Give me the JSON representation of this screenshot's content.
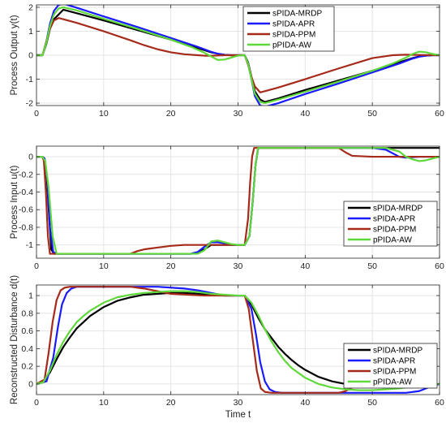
{
  "colors": {
    "sPIDA-MRDP": "#000000",
    "sPIDA-APR": "#1a1aff",
    "sPIDA-PPM": "#a52a1a",
    "pPIDA-AW": "#5fd83a"
  },
  "chart_data": [
    {
      "type": "line",
      "ylabel": "Process Output y(t)",
      "xlabel": "",
      "xlim": [
        0,
        60
      ],
      "ylim": [
        -2.1,
        2.1
      ],
      "xticks": [
        0,
        10,
        20,
        30,
        40,
        50,
        60
      ],
      "xtick_labels": [
        "0",
        "10",
        "20",
        "30",
        "40",
        "50",
        "60"
      ],
      "yticks": [
        -2,
        -1,
        0,
        1,
        2
      ],
      "ytick_labels": [
        "-2",
        "-1",
        "0",
        "1",
        "2"
      ],
      "grid": true,
      "legend_position": "top-right",
      "series": [
        {
          "name": "sPIDA-MRDP",
          "x": [
            0,
            0.9,
            1.5,
            2.0,
            2.6,
            3.3,
            4,
            6,
            10,
            15,
            20,
            24,
            26,
            27,
            28,
            29,
            30,
            31,
            31.5,
            32,
            32.5,
            33.3,
            34,
            36,
            40,
            45,
            50,
            54,
            56,
            57,
            58,
            59,
            60
          ],
          "y": [
            0,
            0,
            0.5,
            1.1,
            1.5,
            1.7,
            1.9,
            1.75,
            1.45,
            1.05,
            0.65,
            0.3,
            0.12,
            0.06,
            0.02,
            0.0,
            0.0,
            0.0,
            -0.3,
            -0.9,
            -1.5,
            -1.85,
            -1.95,
            -1.8,
            -1.45,
            -1.05,
            -0.65,
            -0.3,
            -0.12,
            -0.05,
            -0.02,
            0.0,
            0.0
          ]
        },
        {
          "name": "sPIDA-APR",
          "x": [
            0,
            0.9,
            1.5,
            2.0,
            2.6,
            3.3,
            4,
            6,
            10,
            15,
            20,
            24,
            26,
            27,
            28,
            29,
            30,
            31,
            31.5,
            32,
            32.5,
            33.3,
            34,
            36,
            40,
            45,
            50,
            54,
            56,
            57,
            58,
            59,
            60
          ],
          "y": [
            0,
            0,
            0.6,
            1.3,
            1.85,
            2.1,
            2.15,
            1.98,
            1.62,
            1.18,
            0.72,
            0.35,
            0.14,
            0.06,
            0.02,
            0.0,
            0.0,
            0.0,
            -0.35,
            -1.0,
            -1.7,
            -2.1,
            -2.15,
            -2.0,
            -1.62,
            -1.18,
            -0.72,
            -0.35,
            -0.14,
            -0.06,
            -0.02,
            0.0,
            0.0
          ]
        },
        {
          "name": "sPIDA-PPM",
          "x": [
            0,
            0.9,
            1.5,
            2.0,
            2.6,
            3.3,
            4,
            6,
            10,
            14,
            16,
            18,
            20,
            22,
            24,
            25,
            26,
            28,
            30,
            31,
            31.5,
            32,
            32.5,
            33.3,
            34,
            36,
            40,
            45,
            50,
            52,
            53,
            55,
            57,
            60
          ],
          "y": [
            0,
            0,
            0.6,
            1.1,
            1.45,
            1.55,
            1.5,
            1.35,
            1.0,
            0.62,
            0.42,
            0.25,
            0.12,
            0.04,
            0.0,
            -0.02,
            -0.02,
            0.0,
            0.0,
            0.0,
            -0.4,
            -0.9,
            -1.3,
            -1.55,
            -1.5,
            -1.35,
            -1.0,
            -0.55,
            -0.12,
            -0.04,
            0.0,
            0.02,
            0.01,
            0.0
          ]
        },
        {
          "name": "pPIDA-AW",
          "x": [
            0,
            0.9,
            1.5,
            2.0,
            2.6,
            3.3,
            4,
            6,
            10,
            15,
            20,
            23,
            25,
            26,
            27,
            28,
            29,
            30,
            31,
            31.5,
            32,
            32.5,
            33.3,
            34,
            36,
            40,
            45,
            50,
            53,
            55,
            56,
            57,
            58,
            59,
            60
          ],
          "y": [
            0,
            0,
            0.55,
            1.2,
            1.7,
            1.95,
            2.0,
            1.87,
            1.52,
            1.1,
            0.65,
            0.35,
            0.1,
            -0.05,
            -0.2,
            -0.18,
            -0.1,
            -0.02,
            0.0,
            -0.35,
            -1.0,
            -1.6,
            -1.95,
            -2.0,
            -1.85,
            -1.52,
            -1.1,
            -0.65,
            -0.35,
            -0.1,
            0.05,
            0.15,
            0.12,
            0.05,
            0.0
          ]
        }
      ]
    },
    {
      "type": "line",
      "ylabel": "Process Input u(t)",
      "xlabel": "",
      "xlim": [
        0,
        60
      ],
      "ylim": [
        -1.15,
        0.12
      ],
      "xticks": [
        0,
        10,
        20,
        30,
        40,
        50,
        60
      ],
      "xtick_labels": [
        "0",
        "10",
        "20",
        "30",
        "40",
        "50",
        "60"
      ],
      "yticks": [
        -1,
        -0.8,
        -0.6,
        -0.4,
        -0.2,
        0
      ],
      "ytick_labels": [
        "-1",
        "-0.8",
        "-0.6",
        "-0.4",
        "-0.2",
        "0"
      ],
      "grid": true,
      "legend_position": "bottom-right",
      "series": [
        {
          "name": "sPIDA-MRDP",
          "x": [
            0,
            0.9,
            1.2,
            1.5,
            1.9,
            2.2,
            2.6,
            23,
            24,
            25,
            26,
            27,
            28,
            29,
            30,
            31,
            31.7,
            32.2,
            32.6,
            33,
            60
          ],
          "y": [
            0,
            0,
            -0.02,
            -0.2,
            -0.7,
            -1.05,
            -1.1,
            -1.1,
            -1.08,
            -1.05,
            -1.0,
            -1.0,
            -1.0,
            -1.0,
            -1.0,
            -1.0,
            -0.9,
            -0.5,
            -0.1,
            0.1,
            0.1
          ]
        },
        {
          "name": "sPIDA-APR",
          "x": [
            0,
            0.9,
            1.2,
            1.6,
            2.0,
            2.5,
            3.0,
            23,
            24,
            25,
            26,
            27,
            28,
            29,
            30,
            31,
            31.7,
            32.2,
            32.6,
            33,
            50,
            52,
            53,
            54,
            55,
            57,
            60
          ],
          "y": [
            0,
            0,
            -0.02,
            -0.25,
            -0.8,
            -1.08,
            -1.1,
            -1.1,
            -1.08,
            -1.02,
            -0.97,
            -0.97,
            -0.98,
            -1.0,
            -1.0,
            -1.0,
            -0.9,
            -0.5,
            -0.1,
            0.1,
            0.1,
            0.08,
            0.04,
            0.0,
            -0.01,
            0.0,
            0.0
          ]
        },
        {
          "name": "sPIDA-PPM",
          "x": [
            0,
            0.9,
            1.1,
            1.4,
            1.7,
            2.0,
            2.3,
            14,
            15,
            16,
            18,
            20,
            22,
            24,
            26,
            28,
            30,
            31,
            31.5,
            31.8,
            32.1,
            32.4,
            45,
            46,
            47,
            50,
            55,
            60
          ],
          "y": [
            0,
            0,
            -0.05,
            -0.4,
            -0.9,
            -1.1,
            -1.1,
            -1.1,
            -1.07,
            -1.05,
            -1.03,
            -1.01,
            -1.0,
            -1.0,
            -1.0,
            -1.0,
            -1.0,
            -1.0,
            -0.7,
            -0.3,
            0.0,
            0.1,
            0.1,
            0.05,
            0.01,
            0.0,
            0.0,
            0.0
          ]
        },
        {
          "name": "pPIDA-AW",
          "x": [
            0,
            0.9,
            1.3,
            1.8,
            2.4,
            3.0,
            3.5,
            23,
            24,
            25,
            26,
            27,
            28,
            29,
            30,
            31,
            31.7,
            32.2,
            32.6,
            33,
            52,
            54,
            55,
            56,
            57,
            58,
            59,
            60
          ],
          "y": [
            0,
            0,
            -0.05,
            -0.35,
            -0.9,
            -1.1,
            -1.1,
            -1.1,
            -1.1,
            -1.06,
            -0.96,
            -0.95,
            -0.97,
            -0.99,
            -1.0,
            -1.0,
            -0.9,
            -0.5,
            -0.1,
            0.1,
            0.1,
            0.06,
            0.0,
            -0.03,
            -0.05,
            -0.04,
            -0.02,
            0.0
          ]
        }
      ]
    },
    {
      "type": "line",
      "ylabel": "Reconstructed Disturbance d(t)",
      "xlabel": "Time t",
      "xlim": [
        0,
        60
      ],
      "ylim": [
        -0.12,
        1.12
      ],
      "xticks": [
        0,
        10,
        20,
        30,
        40,
        50,
        60
      ],
      "xtick_labels": [
        "0",
        "10",
        "20",
        "30",
        "40",
        "50",
        "60"
      ],
      "yticks": [
        0,
        0.2,
        0.4,
        0.6,
        0.8,
        1
      ],
      "ytick_labels": [
        "0",
        "0.2",
        "0.4",
        "0.6",
        "0.8",
        "1"
      ],
      "grid": true,
      "legend_position": "bottom-right",
      "series": [
        {
          "name": "sPIDA-MRDP",
          "x": [
            0,
            1,
            2,
            3,
            4,
            5,
            6,
            7,
            8,
            10,
            12,
            14,
            16,
            18,
            20,
            22,
            24,
            26,
            28,
            30,
            31,
            32,
            33,
            34,
            35,
            36,
            37,
            38,
            39,
            40,
            42,
            44,
            46,
            48,
            50,
            54,
            58,
            60
          ],
          "y": [
            0,
            0.02,
            0.13,
            0.28,
            0.42,
            0.53,
            0.63,
            0.7,
            0.77,
            0.87,
            0.94,
            0.98,
            1.01,
            1.02,
            1.03,
            1.03,
            1.02,
            1.01,
            1.0,
            1.0,
            1.0,
            0.9,
            0.75,
            0.62,
            0.52,
            0.42,
            0.34,
            0.27,
            0.21,
            0.16,
            0.08,
            0.03,
            0.0,
            -0.02,
            -0.03,
            -0.04,
            -0.02,
            0.0
          ]
        },
        {
          "name": "sPIDA-APR",
          "x": [
            0,
            1.5,
            2.5,
            3.2,
            3.8,
            4.5,
            5.2,
            6,
            10,
            15,
            18,
            20,
            22,
            24,
            26,
            28,
            30,
            31,
            32,
            32.7,
            33.3,
            34,
            34.7,
            35.5,
            36.5,
            40,
            45,
            50,
            55,
            57,
            59,
            60
          ],
          "y": [
            0,
            0.03,
            0.3,
            0.65,
            0.9,
            1.03,
            1.08,
            1.1,
            1.1,
            1.1,
            1.1,
            1.09,
            1.08,
            1.06,
            1.03,
            1.0,
            1.0,
            1.0,
            0.85,
            0.55,
            0.25,
            0.03,
            -0.06,
            -0.09,
            -0.1,
            -0.1,
            -0.1,
            -0.1,
            -0.1,
            -0.08,
            -0.02,
            0.0
          ]
        },
        {
          "name": "sPIDA-PPM",
          "x": [
            0,
            1.2,
            1.8,
            2.4,
            3.0,
            3.6,
            4.2,
            5,
            10,
            14,
            16,
            18,
            20,
            25,
            30,
            31,
            31.6,
            32.2,
            32.8,
            33.4,
            34,
            35,
            40,
            45,
            46,
            47,
            48,
            50,
            55,
            60
          ],
          "y": [
            0,
            0.05,
            0.35,
            0.7,
            0.95,
            1.06,
            1.09,
            1.1,
            1.1,
            1.1,
            1.08,
            1.05,
            1.02,
            1.0,
            1.0,
            1.0,
            0.85,
            0.5,
            0.15,
            -0.05,
            -0.09,
            -0.1,
            -0.1,
            -0.1,
            -0.08,
            -0.04,
            -0.01,
            0.0,
            0.0,
            0.0
          ]
        },
        {
          "name": "pPIDA-AW",
          "x": [
            0,
            1,
            2,
            3,
            4,
            5,
            6,
            7,
            8,
            10,
            12,
            14,
            16,
            18,
            20,
            22,
            24,
            26,
            28,
            30,
            31,
            32,
            33,
            34,
            35,
            36,
            37,
            38,
            40,
            42,
            44,
            46,
            48,
            50,
            52,
            54,
            56,
            58,
            60
          ],
          "y": [
            0,
            0.02,
            0.15,
            0.33,
            0.48,
            0.6,
            0.7,
            0.77,
            0.83,
            0.92,
            0.98,
            1.01,
            1.03,
            1.04,
            1.05,
            1.05,
            1.04,
            1.02,
            1.01,
            1.0,
            1.0,
            0.92,
            0.78,
            0.62,
            0.48,
            0.36,
            0.26,
            0.18,
            0.07,
            0.0,
            -0.04,
            -0.06,
            -0.07,
            -0.07,
            -0.06,
            -0.05,
            -0.03,
            -0.01,
            0.0
          ]
        }
      ]
    }
  ]
}
